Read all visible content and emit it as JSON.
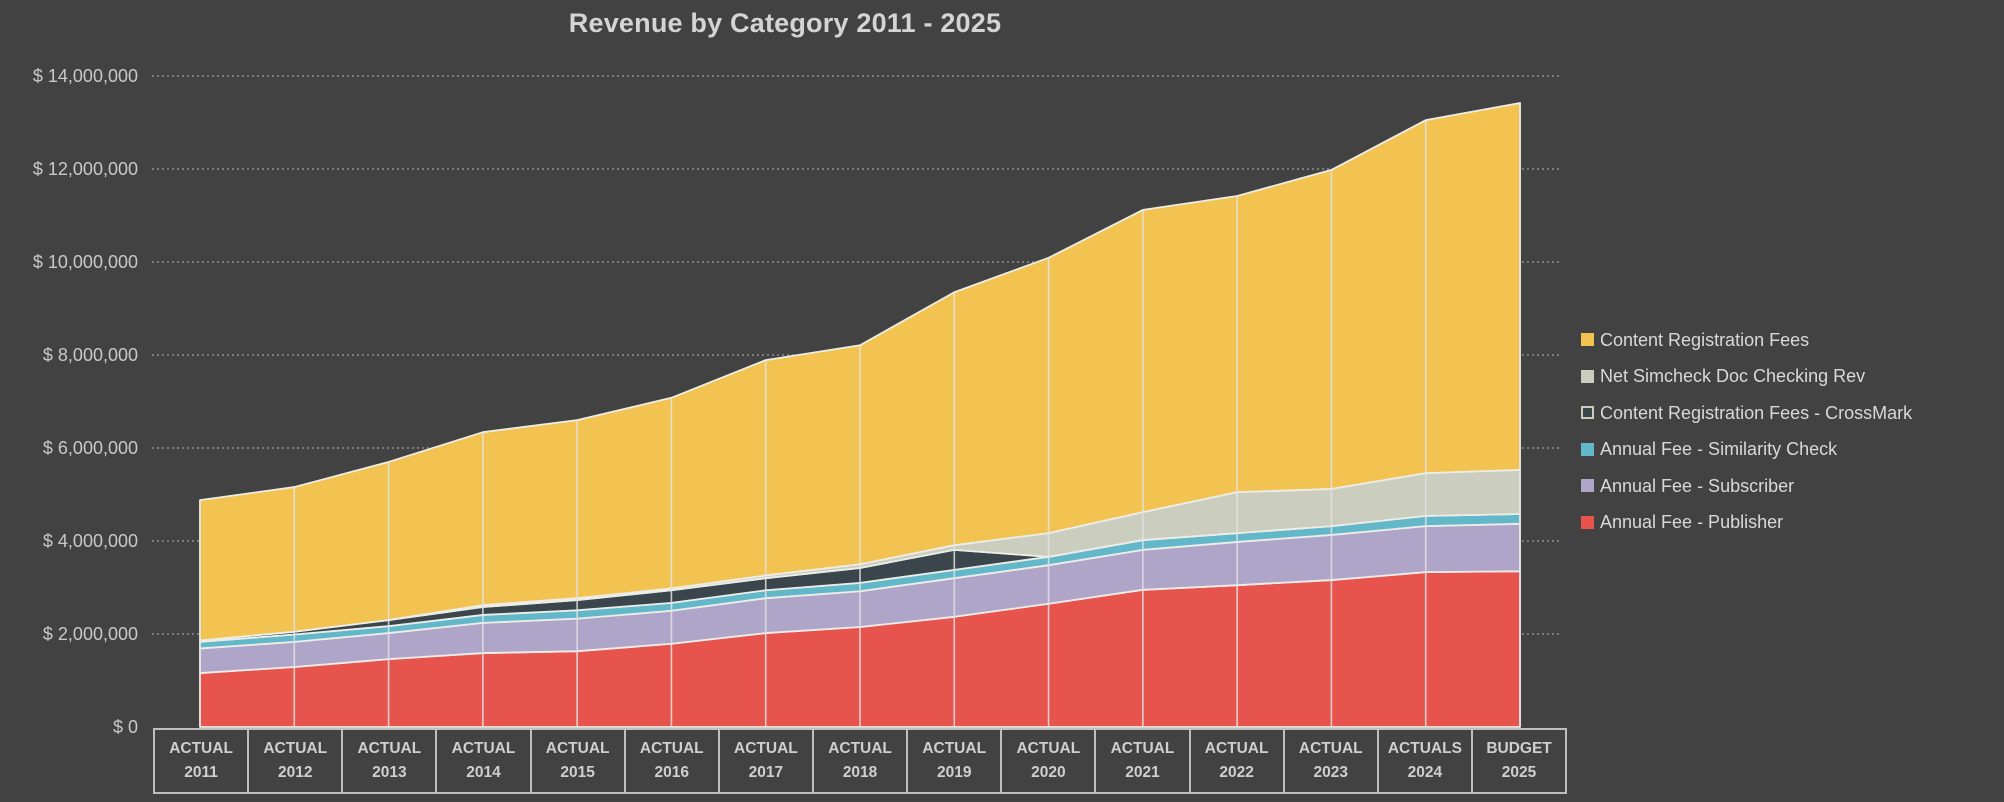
{
  "title": "Revenue by Category 2011 - 2025",
  "colors": {
    "background": "#424242",
    "text": "#D6D6D6",
    "axis_border": "#BFBFBF",
    "dotted_grid": "#8E8E8E",
    "area_outline": "#EDEDE8",
    "vertical_grid": "#E3E3E3"
  },
  "x_axis": {
    "periods": [
      {
        "label": "ACTUAL",
        "year": "2011"
      },
      {
        "label": "ACTUAL",
        "year": "2012"
      },
      {
        "label": "ACTUAL",
        "year": "2013"
      },
      {
        "label": "ACTUAL",
        "year": "2014"
      },
      {
        "label": "ACTUAL",
        "year": "2015"
      },
      {
        "label": "ACTUAL",
        "year": "2016"
      },
      {
        "label": "ACTUAL",
        "year": "2017"
      },
      {
        "label": "ACTUAL",
        "year": "2018"
      },
      {
        "label": "ACTUAL",
        "year": "2019"
      },
      {
        "label": "ACTUAL",
        "year": "2020"
      },
      {
        "label": "ACTUAL",
        "year": "2021"
      },
      {
        "label": "ACTUAL",
        "year": "2022"
      },
      {
        "label": "ACTUAL",
        "year": "2023"
      },
      {
        "label": "ACTUALS",
        "year": "2024"
      },
      {
        "label": "BUDGET",
        "year": "2025"
      }
    ]
  },
  "legend": {
    "items": [
      {
        "label": "Content Registration Fees",
        "fill": "#F3C352",
        "border": ""
      },
      {
        "label": "Net Simcheck Doc Checking Rev",
        "fill": "#CBCDBE",
        "border": ""
      },
      {
        "label": "Content Registration Fees - CrossMark",
        "fill": "#3A464C",
        "border": "#C9CCBB"
      },
      {
        "label": "Annual Fee - Similarity Check",
        "fill": "#62B8C9",
        "border": ""
      },
      {
        "label": "Annual Fee - Subscriber",
        "fill": "#AFA5C9",
        "border": ""
      },
      {
        "label": "Annual Fee - Publisher",
        "fill": "#E7534D",
        "border": ""
      }
    ]
  },
  "chart_data": {
    "type": "area",
    "stacked": true,
    "title": "Revenue by Category 2011 - 2025",
    "x": [
      "2011",
      "2012",
      "2013",
      "2014",
      "2015",
      "2016",
      "2017",
      "2018",
      "2019",
      "2020",
      "2021",
      "2022",
      "2023",
      "2024",
      "2025"
    ],
    "ylim": [
      0,
      14000000
    ],
    "grid": "horizontal-dotted",
    "legend_position": "right",
    "y_axis": {
      "ticks": [
        {
          "value": 0,
          "label": "$ 0"
        },
        {
          "value": 2000000,
          "label": "$ 2,000,000"
        },
        {
          "value": 4000000,
          "label": "$ 4,000,000"
        },
        {
          "value": 6000000,
          "label": "$ 6,000,000"
        },
        {
          "value": 8000000,
          "label": "$ 8,000,000"
        },
        {
          "value": 10000000,
          "label": "$ 10,000,000"
        },
        {
          "value": 12000000,
          "label": "$ 12,000,000"
        },
        {
          "value": 14000000,
          "label": "$ 14,000,000"
        }
      ]
    },
    "series": [
      {
        "name": "Annual Fee - Publisher",
        "color": "#E7534D",
        "values": [
          1160000,
          1290000,
          1460000,
          1590000,
          1630000,
          1790000,
          2020000,
          2150000,
          2370000,
          2650000,
          2950000,
          3050000,
          3160000,
          3330000,
          3350000
        ]
      },
      {
        "name": "Annual Fee - Subscriber",
        "color": "#AFA5C9",
        "values": [
          530000,
          540000,
          560000,
          650000,
          700000,
          710000,
          750000,
          770000,
          830000,
          830000,
          860000,
          930000,
          970000,
          990000,
          1020000
        ]
      },
      {
        "name": "Annual Fee - Similarity Check",
        "color": "#62B8C9",
        "values": [
          140000,
          160000,
          150000,
          170000,
          180000,
          170000,
          170000,
          180000,
          180000,
          180000,
          210000,
          190000,
          190000,
          220000,
          210000
        ]
      },
      {
        "name": "Content Registration Fees - CrossMark",
        "color": "#3A464C",
        "values": [
          30000,
          60000,
          130000,
          170000,
          220000,
          270000,
          260000,
          320000,
          430000,
          0,
          0,
          0,
          0,
          0,
          0
        ]
      },
      {
        "name": "Net Simcheck Doc Checking Rev",
        "color": "#CBCDBE",
        "values": [
          0,
          0,
          0,
          40000,
          40000,
          40000,
          60000,
          80000,
          100000,
          510000,
          600000,
          880000,
          800000,
          920000,
          950000
        ]
      },
      {
        "name": "Content Registration Fees",
        "color": "#F3C352",
        "values": [
          3020000,
          3110000,
          3400000,
          3720000,
          3830000,
          4100000,
          4630000,
          4710000,
          5440000,
          5920000,
          6500000,
          6370000,
          6860000,
          7590000,
          7890000
        ]
      }
    ]
  }
}
